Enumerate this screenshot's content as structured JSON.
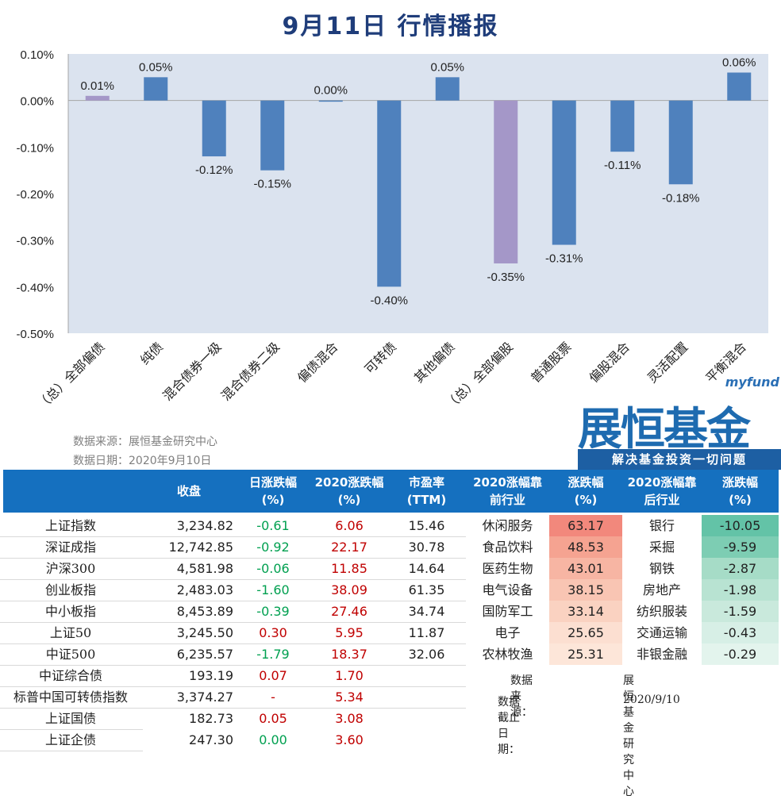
{
  "title": "9月11日  行情播报",
  "chart_data": {
    "type": "bar",
    "categories": [
      "（总）全部偏债",
      "纯债",
      "混合债券一级",
      "混合债券二级",
      "偏债混合",
      "可转债",
      "其他偏债",
      "（总）全部偏股",
      "普通股票",
      "偏股混合",
      "灵活配置",
      "平衡混合"
    ],
    "values": [
      0.01,
      0.05,
      -0.12,
      -0.15,
      0.0,
      -0.4,
      0.05,
      -0.35,
      -0.31,
      -0.11,
      -0.18,
      0.06
    ],
    "value_labels": [
      "0.01%",
      "0.05%",
      "-0.12%",
      "-0.15%",
      "0.00%",
      "-0.40%",
      "0.05%",
      "-0.35%",
      "-0.31%",
      "-0.11%",
      "-0.18%",
      "0.06%"
    ],
    "ylim": [
      -0.5,
      0.1
    ],
    "yticks": [
      "0.10%",
      "0.00%",
      "-0.10%",
      "-0.20%",
      "-0.30%",
      "-0.40%",
      "-0.50%"
    ],
    "ytick_values": [
      0.1,
      0.0,
      -0.1,
      -0.2,
      -0.3,
      -0.4,
      -0.5
    ],
    "bar_colors": [
      "#a497c8",
      "#4f81bd",
      "#4f81bd",
      "#4f81bd",
      "#4f81bd",
      "#4f81bd",
      "#4f81bd",
      "#a497c8",
      "#4f81bd",
      "#4f81bd",
      "#4f81bd",
      "#4f81bd"
    ],
    "plot_bg": "#dbe3ef",
    "grid": false
  },
  "source": {
    "line1": "数据来源：展恒基金研究中心",
    "line2": "数据日期：2020年9月10日"
  },
  "logo": {
    "top": "myfund",
    "main": "展恒基金",
    "slogan": "解决基金投资一切问题"
  },
  "left_table": {
    "headers": [
      [
        "",
        "收盘"
      ],
      [
        "日涨跌幅",
        "(%)"
      ],
      [
        "2020涨跌幅",
        "(%)"
      ],
      [
        "市盈率",
        "(TTM)"
      ]
    ],
    "rows": [
      {
        "name": "上证指数",
        "close": "3,234.82",
        "day": "-0.61",
        "ytd": "6.06",
        "pe": "15.46"
      },
      {
        "name": "深证成指",
        "close": "12,742.85",
        "day": "-0.92",
        "ytd": "22.17",
        "pe": "30.78"
      },
      {
        "name": "沪深300",
        "close": "4,581.98",
        "day": "-0.06",
        "ytd": "11.85",
        "pe": "14.64"
      },
      {
        "name": "创业板指",
        "close": "2,483.03",
        "day": "-1.60",
        "ytd": "38.09",
        "pe": "61.35"
      },
      {
        "name": "中小板指",
        "close": "8,453.89",
        "day": "-0.39",
        "ytd": "27.46",
        "pe": "34.74"
      },
      {
        "name": "上证50",
        "close": "3,245.50",
        "day": "0.30",
        "ytd": "5.95",
        "pe": "11.87"
      },
      {
        "name": "中证500",
        "close": "6,235.57",
        "day": "-1.79",
        "ytd": "18.37",
        "pe": "32.06"
      },
      {
        "name": "中证综合债",
        "close": "193.19",
        "day": "0.07",
        "ytd": "1.70",
        "pe": ""
      },
      {
        "name": "标普中国可转债指数",
        "close": "3,374.27",
        "day": "-",
        "ytd": "5.34",
        "pe": ""
      },
      {
        "name": "上证国债",
        "close": "182.73",
        "day": "0.05",
        "ytd": "3.08",
        "pe": ""
      },
      {
        "name": "上证企债",
        "close": "247.30",
        "day": "0.00",
        "ytd": "3.60",
        "pe": ""
      }
    ],
    "colors": {
      "up": "#c00000",
      "down": "#00a050",
      "flat": "#00a050"
    }
  },
  "right_table": {
    "headers": [
      [
        "2020涨幅靠",
        "前行业"
      ],
      [
        "涨跌幅",
        "(%)"
      ],
      [
        "2020涨幅靠",
        "后行业"
      ],
      [
        "涨跌幅",
        "(%)"
      ]
    ],
    "rows": [
      {
        "top": "休闲服务",
        "top_v": "63.17",
        "bot": "银行",
        "bot_v": "-10.05"
      },
      {
        "top": "食品饮料",
        "top_v": "48.53",
        "bot": "采掘",
        "bot_v": "-9.59"
      },
      {
        "top": "医药生物",
        "top_v": "43.01",
        "bot": "钢铁",
        "bot_v": "-2.87"
      },
      {
        "top": "电气设备",
        "top_v": "38.15",
        "bot": "房地产",
        "bot_v": "-1.98"
      },
      {
        "top": "国防军工",
        "top_v": "33.14",
        "bot": "纺织服装",
        "bot_v": "-1.59"
      },
      {
        "top": "电子",
        "top_v": "25.65",
        "bot": "交通运输",
        "bot_v": "-0.43"
      },
      {
        "top": "农林牧渔",
        "top_v": "25.31",
        "bot": "非银金融",
        "bot_v": "-0.29"
      }
    ],
    "top_colors": [
      "#f2887c",
      "#f5a391",
      "#f7b5a3",
      "#f9c5b3",
      "#fad2c1",
      "#fcdfd1",
      "#fde6d9"
    ],
    "bot_colors": [
      "#63c3a7",
      "#7dcdb3",
      "#a6dcc7",
      "#b8e3d2",
      "#c9e9dc",
      "#d7efe6",
      "#e3f4ed"
    ],
    "note_label1": "数据来源：",
    "note_value1": "展恒基金研究中心",
    "note_label2": "数据截止日期：",
    "note_value2": "2020/9/10"
  }
}
